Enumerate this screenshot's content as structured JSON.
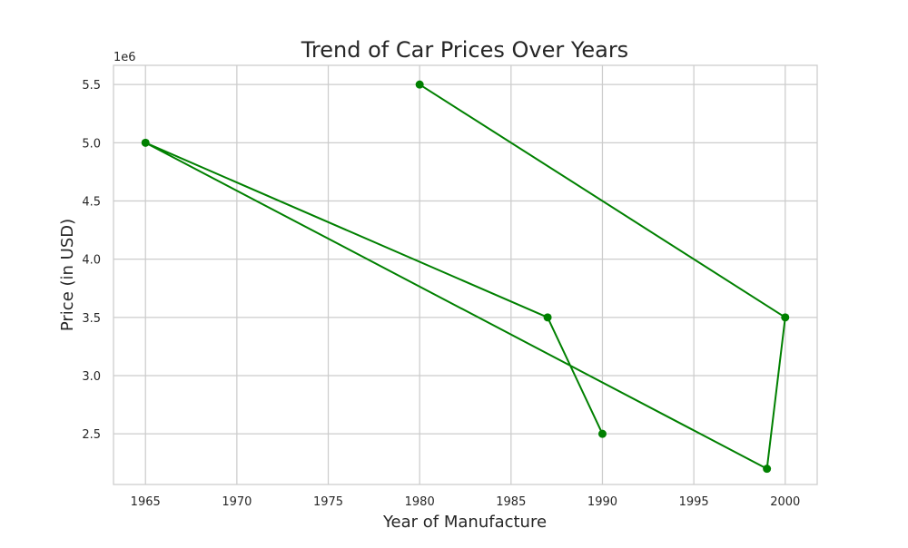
{
  "chart_data": {
    "type": "line",
    "title": "Trend of Car Prices Over Years",
    "xlabel": "Year of Manufacture",
    "ylabel": "Price (in USD)",
    "y_offset_label": "1e6",
    "x_ticks": [
      1965,
      1970,
      1975,
      1980,
      1985,
      1990,
      1995,
      2000
    ],
    "y_ticks": [
      "2.5",
      "3.0",
      "3.5",
      "4.0",
      "4.5",
      "5.0",
      "5.5"
    ],
    "xlim": [
      1963.25,
      2001.75
    ],
    "ylim": [
      2065000,
      5665000
    ],
    "grid": true,
    "series": [
      {
        "color": "#008000",
        "marker": "circle",
        "x": [
          1980,
          2000,
          1999,
          1965,
          1987,
          1990
        ],
        "y": [
          5500000,
          3500000,
          2200000,
          5000000,
          3500000,
          2500000
        ]
      }
    ]
  }
}
